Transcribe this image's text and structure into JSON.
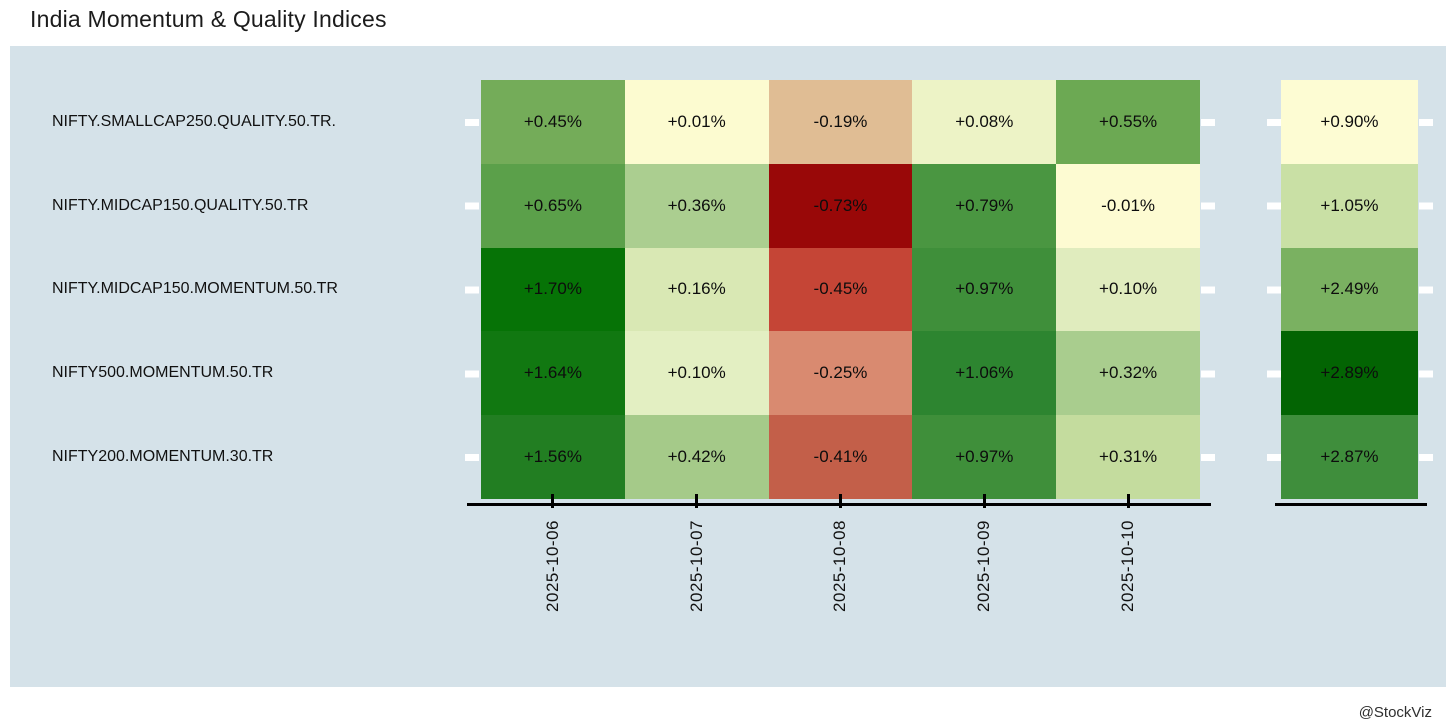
{
  "title": "India Momentum & Quality Indices",
  "watermark": "@StockViz",
  "colors": {
    "page_bg": "#ffffff",
    "plot_bg": "#d5e2e9",
    "axis_line": "#000000",
    "tick_dash": "#ffffff",
    "title_text": "#1b1b1b",
    "cell_text": "#0d0d0d"
  },
  "chart_data": {
    "type": "heatmap",
    "title": "India Momentum & Quality Indices",
    "unit": "% daily return",
    "colormap": "RdYlGn",
    "legend": "none",
    "x_dates": [
      "2025-10-06",
      "2025-10-07",
      "2025-10-08",
      "2025-10-09",
      "2025-10-10"
    ],
    "summary_column": "cumulative total",
    "rows": [
      {
        "label": "NIFTY.SMALLCAP250.QUALITY.50.TR.",
        "values": [
          0.45,
          0.01,
          -0.19,
          0.08,
          0.55
        ],
        "cells": [
          {
            "label": "+0.45%",
            "bg": "#74ac59"
          },
          {
            "label": "+0.01%",
            "bg": "#fcfbd0"
          },
          {
            "label": "-0.19%",
            "bg": "#e0bd94"
          },
          {
            "label": "+0.08%",
            "bg": "#edf3c6"
          },
          {
            "label": "+0.55%",
            "bg": "#6ca953"
          }
        ],
        "total": {
          "value": 0.9,
          "label": "+0.90%",
          "bg": "#fdfcd3"
        }
      },
      {
        "label": "NIFTY.MIDCAP150.QUALITY.50.TR",
        "values": [
          0.65,
          0.36,
          -0.73,
          0.79,
          -0.01
        ],
        "cells": [
          {
            "label": "+0.65%",
            "bg": "#5ba04a"
          },
          {
            "label": "+0.36%",
            "bg": "#abce90"
          },
          {
            "label": "-0.73%",
            "bg": "#990808"
          },
          {
            "label": "+0.79%",
            "bg": "#4a9641"
          },
          {
            "label": "-0.01%",
            "bg": "#fdfbd2"
          }
        ],
        "total": {
          "value": 1.05,
          "label": "+1.05%",
          "bg": "#c9e0a5"
        }
      },
      {
        "label": "NIFTY.MIDCAP150.MOMENTUM.50.TR",
        "values": [
          1.7,
          0.16,
          -0.45,
          0.97,
          0.1
        ],
        "cells": [
          {
            "label": "+1.70%",
            "bg": "#067306"
          },
          {
            "label": "+0.16%",
            "bg": "#d9e8b4"
          },
          {
            "label": "-0.45%",
            "bg": "#c54536"
          },
          {
            "label": "+0.97%",
            "bg": "#3f8f3a"
          },
          {
            "label": "+0.10%",
            "bg": "#e0ecbe"
          }
        ],
        "total": {
          "value": 2.49,
          "label": "+2.49%",
          "bg": "#7ab161"
        }
      },
      {
        "label": "NIFTY500.MOMENTUM.50.TR",
        "values": [
          1.64,
          0.1,
          -0.25,
          1.06,
          0.32
        ],
        "cells": [
          {
            "label": "+1.64%",
            "bg": "#117811"
          },
          {
            "label": "+0.10%",
            "bg": "#e3efc2"
          },
          {
            "label": "-0.25%",
            "bg": "#d98a70"
          },
          {
            "label": "+1.06%",
            "bg": "#2d8530"
          },
          {
            "label": "+0.32%",
            "bg": "#a9cd8e"
          }
        ],
        "total": {
          "value": 2.89,
          "label": "+2.89%",
          "bg": "#036403"
        }
      },
      {
        "label": "NIFTY200.MOMENTUM.30.TR",
        "values": [
          1.56,
          0.42,
          -0.41,
          0.97,
          0.31
        ],
        "cells": [
          {
            "label": "+1.56%",
            "bg": "#227e22"
          },
          {
            "label": "+0.42%",
            "bg": "#a5ca89"
          },
          {
            "label": "-0.41%",
            "bg": "#c35f49"
          },
          {
            "label": "+0.97%",
            "bg": "#3f8f3a"
          },
          {
            "label": "+0.31%",
            "bg": "#c4dc9e"
          }
        ],
        "total": {
          "value": 2.87,
          "label": "+2.87%",
          "bg": "#3f8e3c"
        }
      }
    ]
  }
}
